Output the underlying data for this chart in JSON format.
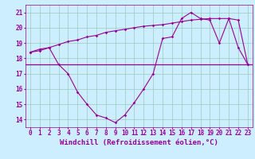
{
  "xlabel": "Windchill (Refroidissement éolien,°C)",
  "x": [
    0,
    1,
    2,
    3,
    4,
    5,
    6,
    7,
    8,
    9,
    10,
    11,
    12,
    13,
    14,
    15,
    16,
    17,
    18,
    19,
    20,
    21,
    22,
    23
  ],
  "windchill": [
    18.4,
    18.6,
    18.7,
    17.6,
    17.0,
    15.8,
    15.0,
    14.3,
    14.1,
    13.8,
    14.3,
    15.1,
    16.0,
    17.0,
    19.3,
    19.4,
    20.6,
    21.0,
    20.6,
    20.5,
    19.0,
    20.6,
    18.7,
    17.6
  ],
  "temp": [
    18.4,
    18.5,
    18.7,
    18.9,
    19.1,
    19.2,
    19.4,
    19.5,
    19.7,
    19.8,
    19.9,
    20.0,
    20.1,
    20.15,
    20.2,
    20.3,
    20.4,
    20.5,
    20.55,
    20.6,
    20.6,
    20.6,
    20.5,
    17.6
  ],
  "hline_y": 17.6,
  "ylim": [
    13.5,
    21.5
  ],
  "xlim": [
    -0.5,
    23.5
  ],
  "yticks": [
    14,
    15,
    16,
    17,
    18,
    19,
    20,
    21
  ],
  "xticks": [
    0,
    1,
    2,
    3,
    4,
    5,
    6,
    7,
    8,
    9,
    10,
    11,
    12,
    13,
    14,
    15,
    16,
    17,
    18,
    19,
    20,
    21,
    22,
    23
  ],
  "line_color": "#990099",
  "bg_color": "#cceeff",
  "grid_color": "#99ccbb",
  "marker": "D",
  "marker_size": 1.8,
  "line_width": 0.8,
  "tick_fontsize": 5.5,
  "xlabel_fontsize": 6.5
}
